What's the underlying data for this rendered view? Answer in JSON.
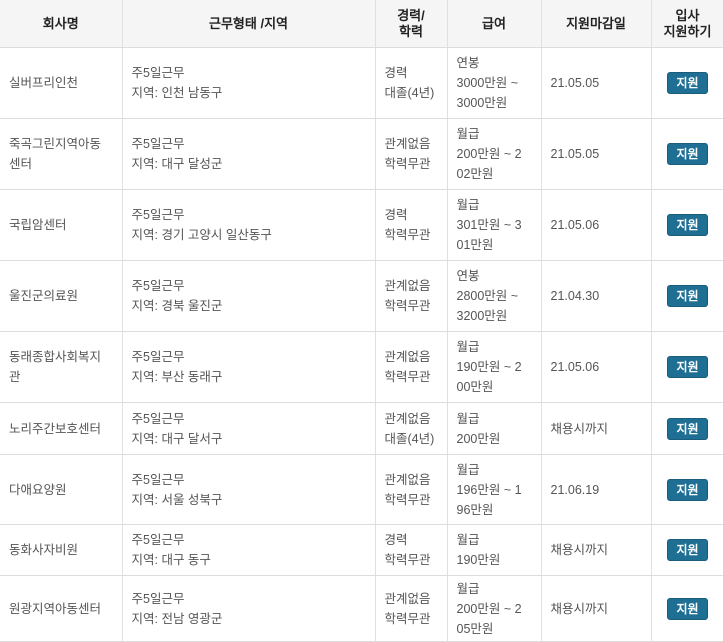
{
  "headers": {
    "company": "회사명",
    "work": "근무형태 /지역",
    "career": [
      "경력/",
      "학력"
    ],
    "salary": "급여",
    "deadline": "지원마감일",
    "apply": [
      "입사",
      "지원하기"
    ]
  },
  "apply_label": "지원",
  "rows": [
    {
      "company": [
        "실버프리인천"
      ],
      "work": "주5일근무",
      "region": "지역: 인천 남동구",
      "career": "경력",
      "edu": "대졸(4년)",
      "salary": [
        "연봉",
        "3000만원 ~",
        "3000만원"
      ],
      "deadline": "21.05.05"
    },
    {
      "company": [
        "죽곡그린지역아동",
        "센터"
      ],
      "work": "주5일근무",
      "region": "지역: 대구 달성군",
      "career": "관계없음",
      "edu": "학력무관",
      "salary": [
        "월급",
        "200만원 ~ 2",
        "02만원"
      ],
      "deadline": "21.05.05"
    },
    {
      "company": [
        "국립암센터"
      ],
      "work": "주5일근무",
      "region": "지역: 경기 고양시 일산동구",
      "career": "경력",
      "edu": "학력무관",
      "salary": [
        "월급",
        "301만원 ~ 3",
        "01만원"
      ],
      "deadline": "21.05.06"
    },
    {
      "company": [
        "울진군의료원"
      ],
      "work": "주5일근무",
      "region": "지역: 경북 울진군",
      "career": "관계없음",
      "edu": "학력무관",
      "salary": [
        "연봉",
        "2800만원 ~",
        "3200만원"
      ],
      "deadline": "21.04.30"
    },
    {
      "company": [
        "동래종합사회복지",
        "관"
      ],
      "work": "주5일근무",
      "region": "지역: 부산 동래구",
      "career": "관계없음",
      "edu": "학력무관",
      "salary": [
        "월급",
        "190만원 ~ 2",
        "00만원"
      ],
      "deadline": "21.05.06"
    },
    {
      "company": [
        "노리주간보호센터"
      ],
      "work": "주5일근무",
      "region": "지역: 대구 달서구",
      "career": "관계없음",
      "edu": "대졸(4년)",
      "salary": [
        "월급",
        "200만원"
      ],
      "deadline": "채용시까지"
    },
    {
      "company": [
        "다애요양원"
      ],
      "work": "주5일근무",
      "region": "지역: 서울 성북구",
      "career": "관계없음",
      "edu": "학력무관",
      "salary": [
        "월급",
        "196만원 ~ 1",
        "96만원"
      ],
      "deadline": "21.06.19"
    },
    {
      "company": [
        "동화사자비원"
      ],
      "work": "주5일근무",
      "region": "지역: 대구 동구",
      "career": "경력",
      "edu": "학력무관",
      "salary": [
        "월급",
        "190만원"
      ],
      "deadline": "채용시까지"
    },
    {
      "company": [
        "원광지역아동센터"
      ],
      "work": "주5일근무",
      "region": "지역: 전남 영광군",
      "career": "관계없음",
      "edu": "학력무관",
      "salary": [
        "월급",
        "200만원 ~ 2",
        "05만원"
      ],
      "deadline": "채용시까지"
    }
  ]
}
